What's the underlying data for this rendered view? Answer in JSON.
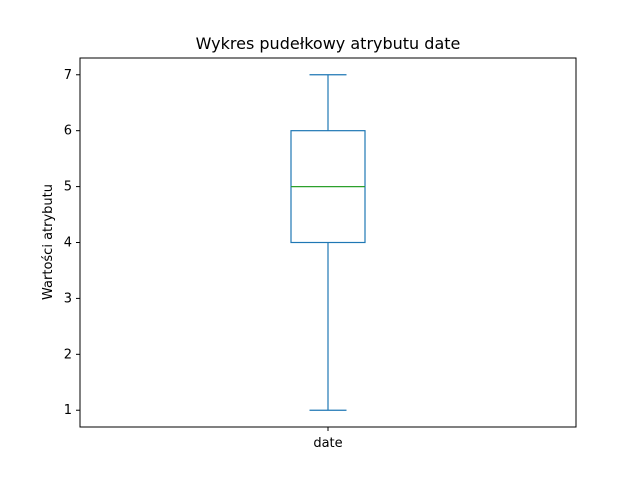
{
  "chart_data": {
    "type": "box",
    "title": "Wykres pudełkowy atrybutu date",
    "xlabel": "",
    "ylabel": "Wartości atrybutu",
    "ylim": [
      0.7,
      7.3
    ],
    "yticks": [
      1,
      2,
      3,
      4,
      5,
      6,
      7
    ],
    "grid": false,
    "categories": [
      "date"
    ],
    "boxes": [
      {
        "label": "date",
        "whisker_low": 1,
        "q1": 4,
        "median": 5,
        "q3": 6,
        "whisker_high": 7
      }
    ],
    "colors": {
      "box": "#1f77b4",
      "median": "#2ca02c",
      "axes": "#000000"
    }
  }
}
